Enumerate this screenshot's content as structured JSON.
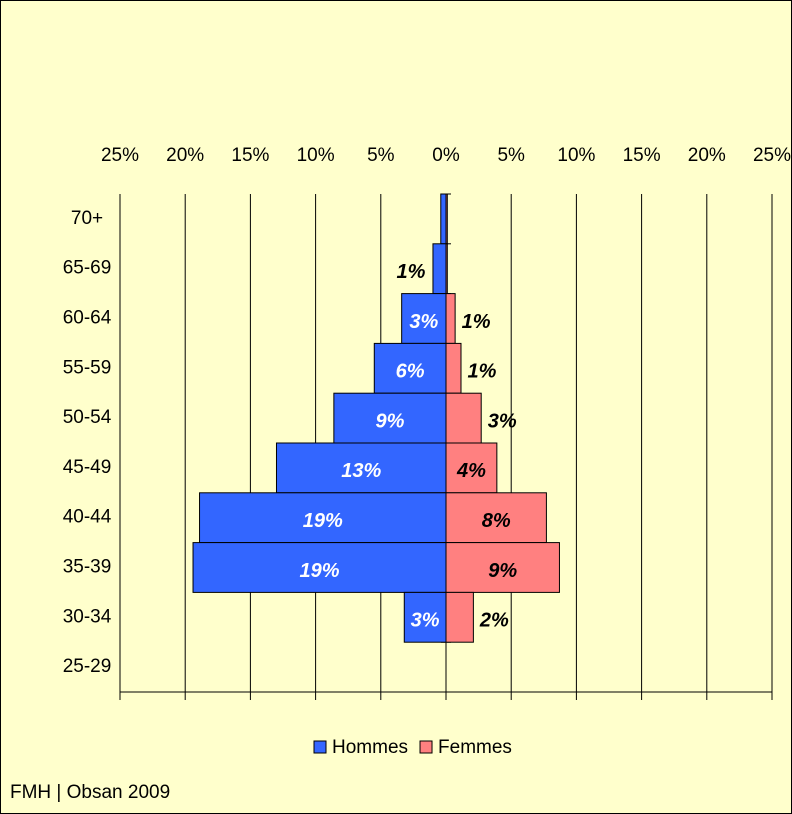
{
  "chart_data": {
    "type": "pyramid",
    "categories": [
      "70+",
      "65-69",
      "60-64",
      "55-59",
      "50-54",
      "45-49",
      "40-44",
      "35-39",
      "30-34",
      "25-29"
    ],
    "series": [
      {
        "name": "Hommes",
        "color": "#3366ff",
        "side": "left",
        "values": [
          0.4,
          1.0,
          3.4,
          5.5,
          8.6,
          13.0,
          18.9,
          19.4,
          3.2,
          0
        ],
        "value_labels": [
          null,
          "1%",
          "3%",
          "6%",
          "9%",
          "13%",
          "19%",
          "19%",
          "3%",
          null
        ]
      },
      {
        "name": "Femmes",
        "color": "#ff8080",
        "side": "right",
        "values": [
          0.1,
          0.1,
          0.7,
          1.15,
          2.7,
          3.9,
          7.7,
          8.7,
          2.1,
          0
        ],
        "value_labels": [
          null,
          null,
          "1%",
          "1%",
          "3%",
          "4%",
          "8%",
          "9%",
          "2%",
          null
        ]
      }
    ],
    "xlim": [
      -25,
      25
    ],
    "xticks": [
      {
        "value": -25,
        "label": "25%"
      },
      {
        "value": -20,
        "label": "20%"
      },
      {
        "value": -15,
        "label": "15%"
      },
      {
        "value": -10,
        "label": "10%"
      },
      {
        "value": -5,
        "label": "5%"
      },
      {
        "value": 0,
        "label": "0%"
      },
      {
        "value": 5,
        "label": "5%"
      },
      {
        "value": 10,
        "label": "10%"
      },
      {
        "value": 15,
        "label": "15%"
      },
      {
        "value": 20,
        "label": "20%"
      },
      {
        "value": 25,
        "label": "25%"
      }
    ],
    "grid": true,
    "legend": "bottom",
    "source": "FMH | Obsan 2009"
  }
}
